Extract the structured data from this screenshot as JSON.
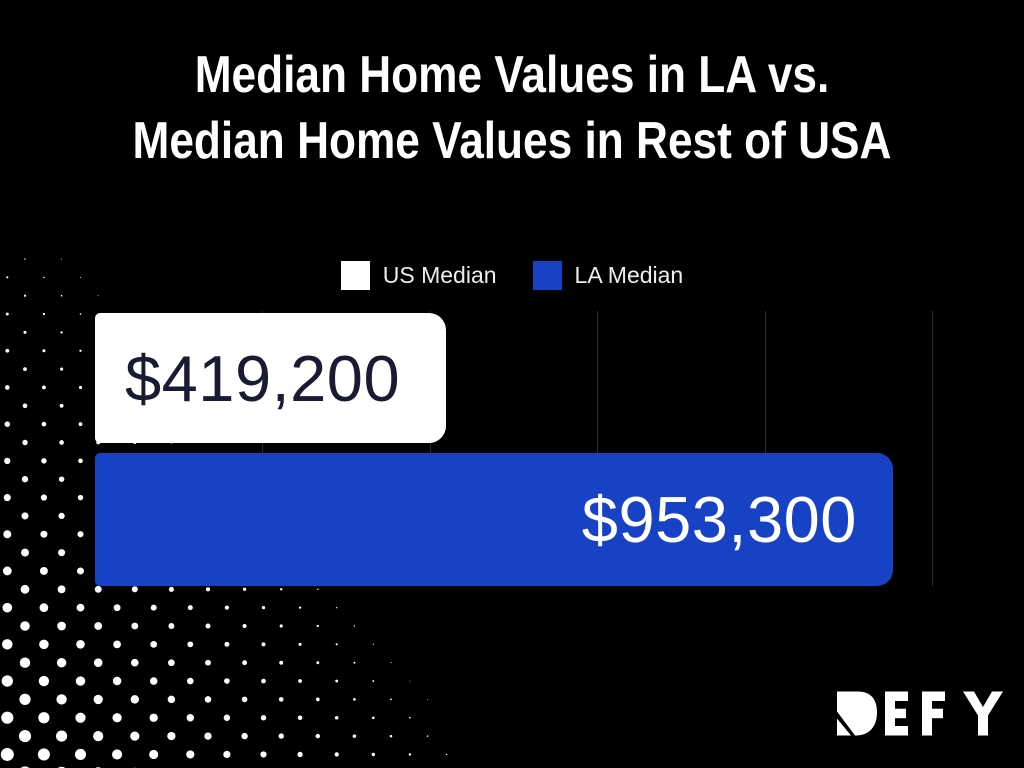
{
  "title": {
    "line1": "Median Home Values in LA vs.",
    "line2": "Median Home Values in Rest of USA"
  },
  "legend": {
    "items": [
      {
        "label": "US Median",
        "color": "#ffffff"
      },
      {
        "label": "LA Median",
        "color": "#1742c6"
      }
    ]
  },
  "chart_data": {
    "type": "bar",
    "orientation": "horizontal",
    "title": "Median Home Values in LA vs. Median Home Values in Rest of USA",
    "categories": [
      "US Median",
      "LA Median"
    ],
    "series": [
      {
        "name": "US Median",
        "value": 419200,
        "label": "$419,200",
        "bar_color": "#ffffff",
        "label_color": "#1a1a33"
      },
      {
        "name": "LA Median",
        "value": 953300,
        "label": "$953,300",
        "bar_color": "#1742c6",
        "label_color": "#ffffff"
      }
    ],
    "xlim": [
      0,
      1000000
    ],
    "gridline_interval": 200000,
    "grid": true,
    "legend_position": "top"
  },
  "logo": {
    "text": "DEFY"
  },
  "colors": {
    "background": "#000000",
    "accent_blue": "#1742c6",
    "gridline": "#2c2c2c",
    "title_text": "#ffffff",
    "legend_text": "#ededed",
    "us_value_text": "#1a1a33",
    "dots": "#ffffff"
  }
}
